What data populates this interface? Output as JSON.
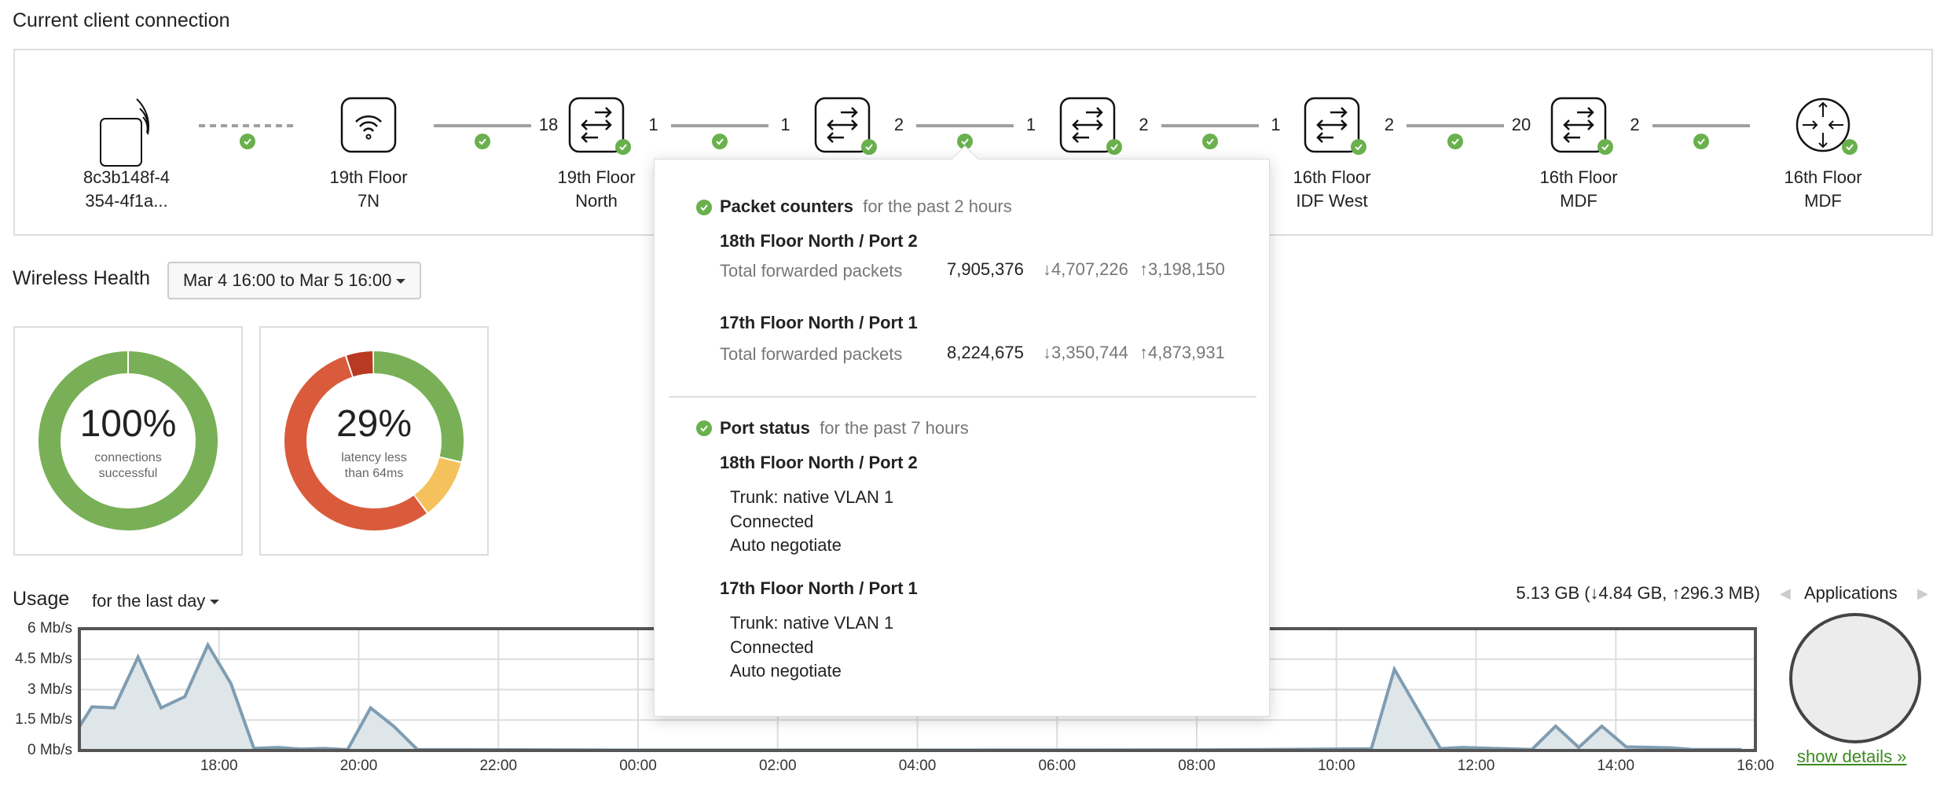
{
  "title": "Current client connection",
  "topology": {
    "nodes": [
      {
        "type": "client",
        "line1": "8c3b148f-4",
        "line2": "354-4f1a...",
        "status": false
      },
      {
        "type": "ap",
        "line1": "19th Floor",
        "line2": "7N",
        "status": false
      },
      {
        "type": "switch",
        "line1": "19th Floor",
        "line2": "North",
        "status": true
      },
      {
        "type": "switch",
        "line1": "",
        "line2": "",
        "status": true
      },
      {
        "type": "switch",
        "line1": "",
        "line2": "",
        "status": true
      },
      {
        "type": "switch",
        "line1": "16th Floor",
        "line2": "IDF West",
        "status": true
      },
      {
        "type": "switch",
        "line1": "16th Floor",
        "line2": "MDF",
        "status": true
      },
      {
        "type": "router",
        "line1": "16th Floor",
        "line2": "MDF",
        "status": true
      }
    ],
    "links": [
      {
        "style": "dashed",
        "left": "",
        "right": ""
      },
      {
        "style": "solid",
        "left": "",
        "right": "18"
      },
      {
        "style": "solid",
        "left": "1",
        "right": "1"
      },
      {
        "style": "solid",
        "left": "2",
        "right": "1"
      },
      {
        "style": "solid",
        "left": "2",
        "right": "1"
      },
      {
        "style": "solid",
        "left": "2",
        "right": "20"
      },
      {
        "style": "solid",
        "left": "2",
        "right": ""
      }
    ]
  },
  "popup": {
    "packet_title": "Packet counters",
    "packet_sub": "for the past 2 hours",
    "counters": [
      {
        "port": "18th Floor North / Port 2",
        "label": "Total forwarded packets",
        "total": "7,905,376",
        "down": "↓4,707,226",
        "up": "↑3,198,150"
      },
      {
        "port": "17th Floor North / Port 1",
        "label": "Total forwarded packets",
        "total": "8,224,675",
        "down": "↓3,350,744",
        "up": "↑4,873,931"
      }
    ],
    "status_title": "Port status",
    "status_sub": "for the past 7 hours",
    "ports": [
      {
        "port": "18th Floor North / Port 2",
        "lines": [
          "Trunk: native VLAN 1",
          "Connected",
          "Auto negotiate"
        ]
      },
      {
        "port": "17th Floor North / Port 1",
        "lines": [
          "Trunk: native VLAN 1",
          "Connected",
          "Auto negotiate"
        ]
      }
    ]
  },
  "wireless": {
    "title": "Wireless Health",
    "range": "Mar 4 16:00 to Mar 5 16:00",
    "donuts": [
      {
        "value": "100%",
        "label1": "connections",
        "label2": "successful",
        "segments": [
          {
            "frac": 1,
            "color": "#79b057"
          }
        ]
      },
      {
        "value": "29%",
        "label1": "latency less",
        "label2": "than 64ms",
        "segments": [
          {
            "frac": 0.29,
            "color": "#79b057"
          },
          {
            "frac": 0.11,
            "color": "#f5c15c"
          },
          {
            "frac": 0.55,
            "color": "#d95b3c"
          },
          {
            "frac": 0.05,
            "color": "#b83a22"
          }
        ]
      }
    ]
  },
  "usage": {
    "title": "Usage",
    "period": "for the last day",
    "total": "5.13 GB (↓4.84 GB, ↑296.3 MB)",
    "apps_title": "Applications",
    "show_details": "show details »"
  },
  "chart_data": {
    "type": "area",
    "xlabel": "",
    "ylabel": "",
    "x_unit": "hours since Mar 4 16:00",
    "xlim": [
      0,
      24
    ],
    "ylim": [
      0,
      6
    ],
    "yticks": [
      {
        "v": 0,
        "label": "0 Mb/s"
      },
      {
        "v": 1.5,
        "label": "1.5 Mb/s"
      },
      {
        "v": 3,
        "label": "3 Mb/s"
      },
      {
        "v": 4.5,
        "label": "4.5 Mb/s"
      },
      {
        "v": 6,
        "label": "6 Mb/s"
      }
    ],
    "xticks": [
      {
        "v": 2,
        "label": "18:00"
      },
      {
        "v": 4,
        "label": "20:00"
      },
      {
        "v": 6,
        "label": "22:00"
      },
      {
        "v": 8,
        "label": "00:00"
      },
      {
        "v": 10,
        "label": "02:00"
      },
      {
        "v": 12,
        "label": "04:00"
      },
      {
        "v": 14,
        "label": "06:00"
      },
      {
        "v": 16,
        "label": "08:00"
      },
      {
        "v": 18,
        "label": "10:00"
      },
      {
        "v": 20,
        "label": "12:00"
      },
      {
        "v": 22,
        "label": "14:00"
      },
      {
        "v": 24,
        "label": "16:00"
      }
    ],
    "grid": true,
    "x": [
      0,
      0.18,
      0.5,
      0.84,
      1.17,
      1.51,
      1.84,
      2.17,
      2.5,
      2.84,
      3.17,
      3.5,
      3.84,
      4.17,
      4.5,
      4.84,
      8,
      12,
      16,
      18.5,
      18.83,
      19.49,
      19.8,
      20.8,
      21.14,
      21.47,
      21.8,
      22.15,
      22.8,
      23.1,
      23.8
    ],
    "values": [
      1.17,
      2.15,
      2.1,
      4.6,
      2.1,
      2.65,
      5.2,
      3.3,
      0.1,
      0.15,
      0.07,
      0.1,
      0.04,
      2.1,
      1.2,
      0.05,
      0.02,
      0.02,
      0.03,
      0.08,
      4.0,
      0.09,
      0.15,
      0.05,
      1.2,
      0.15,
      1.2,
      0.18,
      0.13,
      0.05,
      0.05
    ],
    "color": "#7f9db2",
    "fill": "#dfe6ea"
  }
}
